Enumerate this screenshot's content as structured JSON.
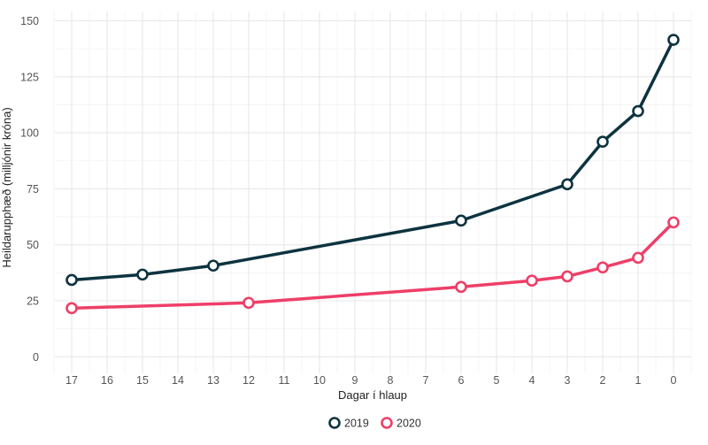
{
  "chart_data": {
    "type": "line",
    "title": "",
    "xlabel": "Dagar í hlaup",
    "ylabel": "Heildarupphæð (milljónir króna)",
    "x_reversed": true,
    "xlim": [
      17,
      0
    ],
    "ylim": [
      0,
      150
    ],
    "x_ticks": [
      17,
      16,
      15,
      14,
      13,
      12,
      11,
      10,
      9,
      8,
      7,
      6,
      5,
      4,
      3,
      2,
      1,
      0
    ],
    "y_ticks": [
      0,
      25,
      50,
      75,
      100,
      125,
      150
    ],
    "grid": true,
    "legend_position": "bottom",
    "series": [
      {
        "name": "2019",
        "color": "#0d3340",
        "x": [
          17,
          15,
          13,
          6,
          3,
          2,
          1,
          0
        ],
        "y": [
          34.3,
          36.7,
          40.7,
          60.8,
          77.0,
          96.0,
          109.7,
          141.5
        ]
      },
      {
        "name": "2020",
        "color": "#ee3f68",
        "x": [
          17,
          12,
          6,
          4,
          3,
          2,
          1,
          0
        ],
        "y": [
          21.7,
          24.1,
          31.2,
          34.0,
          35.9,
          39.9,
          44.2,
          60.0
        ]
      }
    ]
  }
}
